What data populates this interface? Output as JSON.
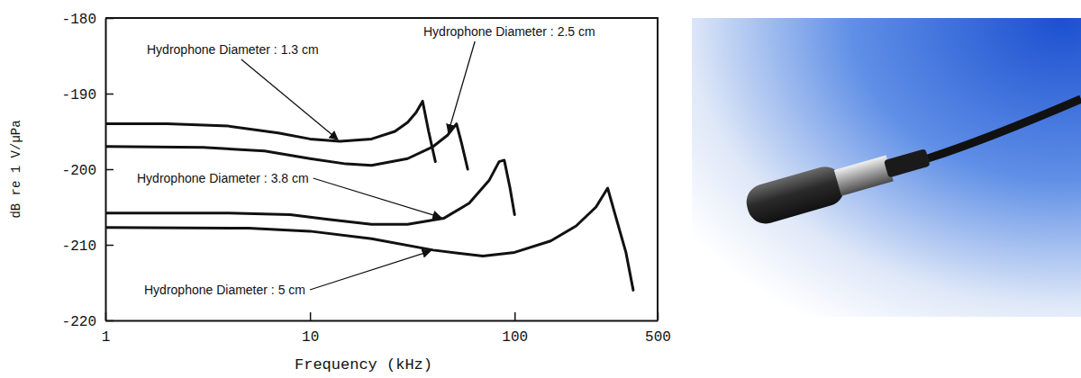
{
  "chart_data": {
    "type": "line",
    "x_label": "Frequency (kHz)",
    "y_label": "dB re 1 V/µPa",
    "log": "x",
    "grid": false,
    "xlim": [
      1,
      500
    ],
    "xticks": [
      1,
      10,
      100,
      500
    ],
    "ylim": [
      -220,
      -180
    ],
    "yticks": [
      -220,
      -210,
      -200,
      -190,
      -180
    ],
    "series": [
      {
        "name": "Hydrophone Diameter : 1.3 cm",
        "color": "#111111",
        "x": [
          1,
          2,
          4,
          7,
          10,
          14,
          20,
          26,
          30,
          33,
          35.5,
          38,
          41
        ],
        "values": [
          -194,
          -194,
          -194.3,
          -195.2,
          -196,
          -196.3,
          -196,
          -195,
          -193.8,
          -192.5,
          -191,
          -195,
          -199
        ]
      },
      {
        "name": "Hydrophone Diameter : 2.5 cm",
        "color": "#111111",
        "x": [
          1,
          3,
          6,
          10,
          15,
          20,
          30,
          40,
          47,
          52,
          55,
          59
        ],
        "values": [
          -197,
          -197.1,
          -197.6,
          -198.6,
          -199.3,
          -199.5,
          -198.6,
          -197,
          -195.5,
          -194,
          -196.5,
          -200
        ]
      },
      {
        "name": "Hydrophone Diameter : 3.8 cm",
        "color": "#111111",
        "x": [
          1,
          4,
          8,
          12,
          20,
          30,
          45,
          60,
          75,
          84,
          89,
          95,
          100
        ],
        "values": [
          -205.8,
          -205.8,
          -206,
          -206.6,
          -207.3,
          -207.3,
          -206.5,
          -204.5,
          -201.5,
          -199,
          -198.8,
          -202.5,
          -206
        ]
      },
      {
        "name": "Hydrophone Diameter : 5 cm",
        "color": "#111111",
        "x": [
          1,
          5,
          10,
          20,
          40,
          70,
          100,
          150,
          200,
          250,
          285,
          310,
          350,
          380
        ],
        "values": [
          -207.7,
          -207.8,
          -208.2,
          -209.2,
          -210.7,
          -211.5,
          -211,
          -209.5,
          -207.5,
          -205,
          -202.5,
          -206,
          -211,
          -216
        ]
      }
    ]
  }
}
